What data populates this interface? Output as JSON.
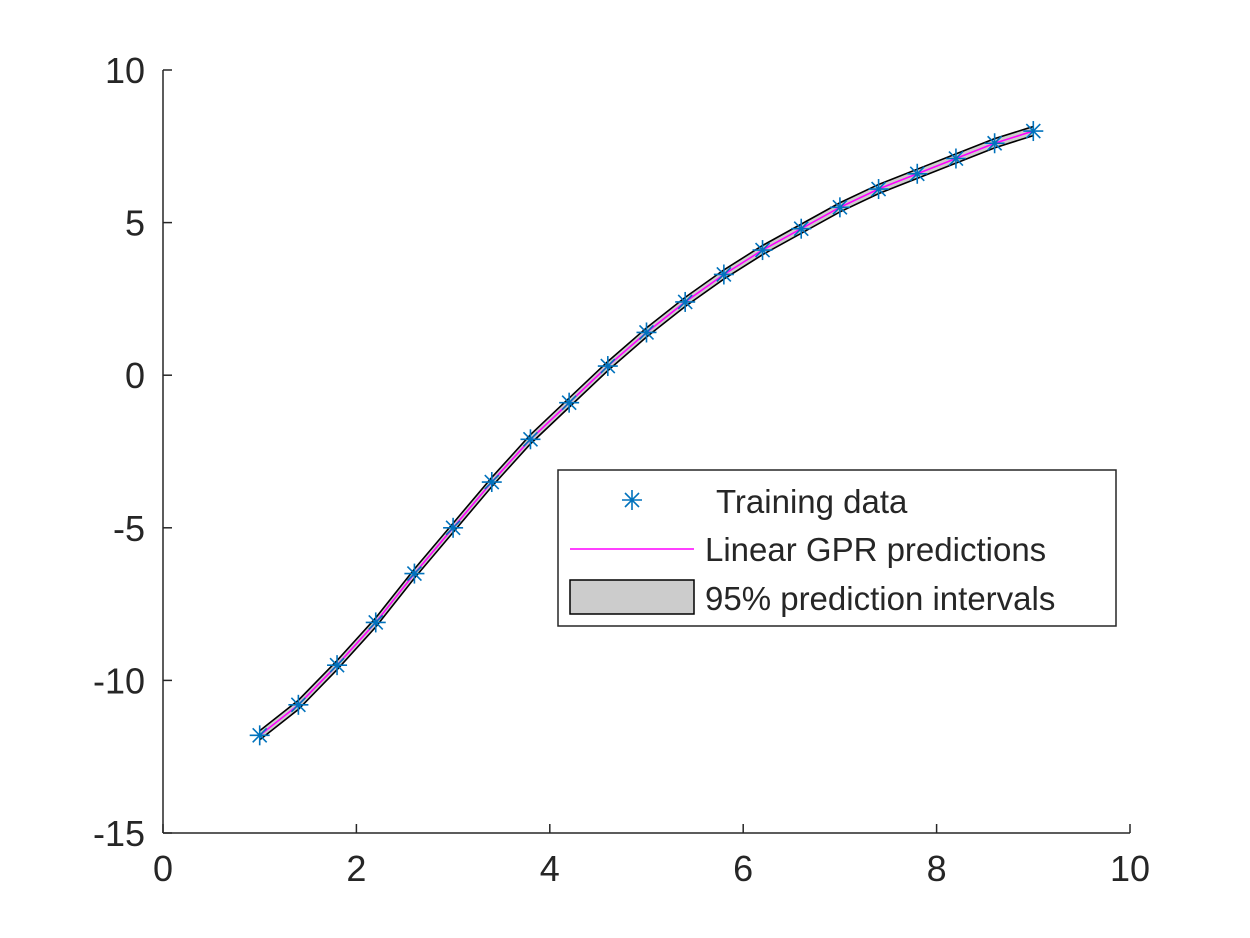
{
  "chart_data": {
    "type": "line",
    "title": "",
    "xlabel": "",
    "ylabel": "",
    "xlim": [
      0,
      10
    ],
    "ylim": [
      -15,
      10
    ],
    "xticks": [
      0,
      2,
      4,
      6,
      8,
      10
    ],
    "yticks": [
      -15,
      -10,
      -5,
      0,
      5,
      10
    ],
    "xtick_labels": [
      "0",
      "2",
      "4",
      "6",
      "8",
      "10"
    ],
    "ytick_labels": [
      "-15",
      "-10",
      "-5",
      "0",
      "5",
      "10"
    ],
    "grid": false,
    "legend_position": "inside-right",
    "series": [
      {
        "name": "Training data",
        "kind": "scatter",
        "marker": "asterisk",
        "color": "#0072BD",
        "x": [
          1.0,
          1.4,
          1.8,
          2.2,
          2.6,
          3.0,
          3.4,
          3.8,
          4.2,
          4.6,
          5.0,
          5.4,
          5.8,
          6.2,
          6.6,
          7.0,
          7.4,
          7.8,
          8.2,
          8.6,
          9.0
        ],
        "y": [
          -11.8,
          -10.8,
          -9.5,
          -8.1,
          -6.5,
          -5.0,
          -3.5,
          -2.1,
          -0.9,
          0.3,
          1.4,
          2.4,
          3.3,
          4.1,
          4.8,
          5.5,
          6.1,
          6.6,
          7.1,
          7.6,
          8.0
        ]
      },
      {
        "name": "Linear GPR predictions",
        "kind": "line",
        "color": "#FF00FF",
        "x": [
          1.0,
          1.4,
          1.8,
          2.2,
          2.6,
          3.0,
          3.4,
          3.8,
          4.2,
          4.6,
          5.0,
          5.4,
          5.8,
          6.2,
          6.6,
          7.0,
          7.4,
          7.8,
          8.2,
          8.6,
          9.0
        ],
        "y": [
          -11.8,
          -10.8,
          -9.5,
          -8.1,
          -6.5,
          -5.0,
          -3.5,
          -2.1,
          -0.9,
          0.3,
          1.4,
          2.4,
          3.3,
          4.1,
          4.8,
          5.5,
          6.1,
          6.6,
          7.1,
          7.6,
          8.0
        ]
      },
      {
        "name": "95% prediction intervals",
        "kind": "band",
        "color": "#CCCCCC",
        "edge_color": "#000000",
        "x": [
          1.0,
          1.4,
          1.8,
          2.2,
          2.6,
          3.0,
          3.4,
          3.8,
          4.2,
          4.6,
          5.0,
          5.4,
          5.8,
          6.2,
          6.6,
          7.0,
          7.4,
          7.8,
          8.2,
          8.6,
          9.0
        ],
        "lower": [
          -11.95,
          -10.95,
          -9.65,
          -8.25,
          -6.65,
          -5.15,
          -3.65,
          -2.25,
          -1.05,
          0.15,
          1.25,
          2.25,
          3.15,
          3.95,
          4.65,
          5.35,
          5.95,
          6.45,
          6.95,
          7.45,
          7.85
        ],
        "upper": [
          -11.65,
          -10.65,
          -9.35,
          -7.95,
          -6.35,
          -4.85,
          -3.35,
          -1.95,
          -0.75,
          0.45,
          1.55,
          2.55,
          3.45,
          4.25,
          4.95,
          5.65,
          6.25,
          6.75,
          7.25,
          7.75,
          8.15
        ]
      }
    ]
  }
}
